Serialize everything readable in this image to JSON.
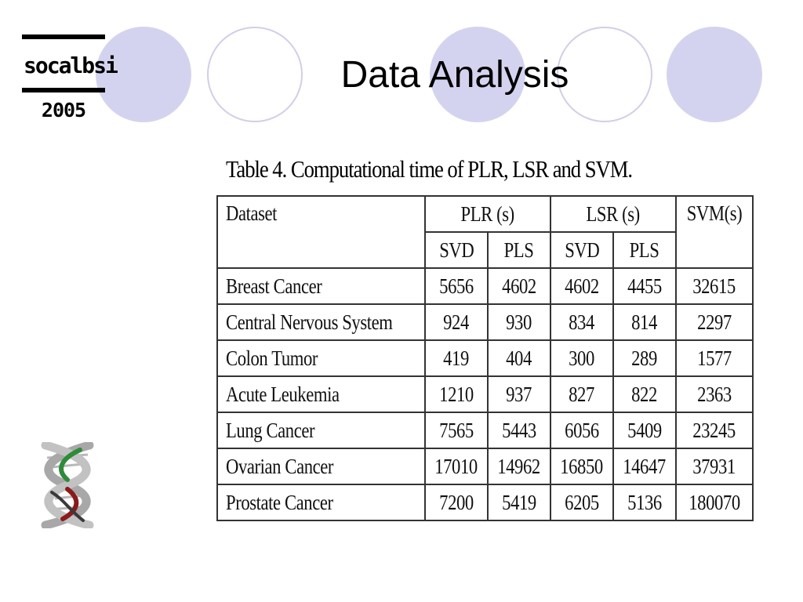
{
  "logo": {
    "name": "socalbsi",
    "year": "2005"
  },
  "slide": {
    "title": "Data Analysis"
  },
  "table": {
    "caption": "Table 4. Computational time of PLR, LSR and SVM.",
    "header": {
      "dataset": "Dataset",
      "plr": "PLR (s)",
      "lsr": "LSR (s)",
      "svm": "SVM(s)",
      "sub": [
        "SVD",
        "PLS",
        "SVD",
        "PLS"
      ]
    },
    "rows": [
      {
        "dataset": "Breast Cancer",
        "values": [
          "5656",
          "4602",
          "4602",
          "4455",
          "32615"
        ]
      },
      {
        "dataset": "Central Nervous System",
        "values": [
          "924",
          "930",
          "834",
          "814",
          "2297"
        ]
      },
      {
        "dataset": "Colon Tumor",
        "values": [
          "419",
          "404",
          "300",
          "289",
          "1577"
        ]
      },
      {
        "dataset": "Acute Leukemia",
        "values": [
          "1210",
          "937",
          "827",
          "822",
          "2363"
        ]
      },
      {
        "dataset": "Lung Cancer",
        "values": [
          "7565",
          "5443",
          "6056",
          "5409",
          "23245"
        ]
      },
      {
        "dataset": "Ovarian Cancer",
        "values": [
          "17010",
          "14962",
          "16850",
          "14647",
          "37931"
        ]
      },
      {
        "dataset": "Prostate Cancer",
        "values": [
          "7200",
          "5419",
          "6205",
          "5136",
          "180070"
        ]
      }
    ]
  },
  "colors": {
    "circle_fill": "#d4d3ef",
    "circle_outline": "#d0cfe8",
    "dna_green": "#2e8b3a",
    "dna_red": "#8b1a1a"
  }
}
